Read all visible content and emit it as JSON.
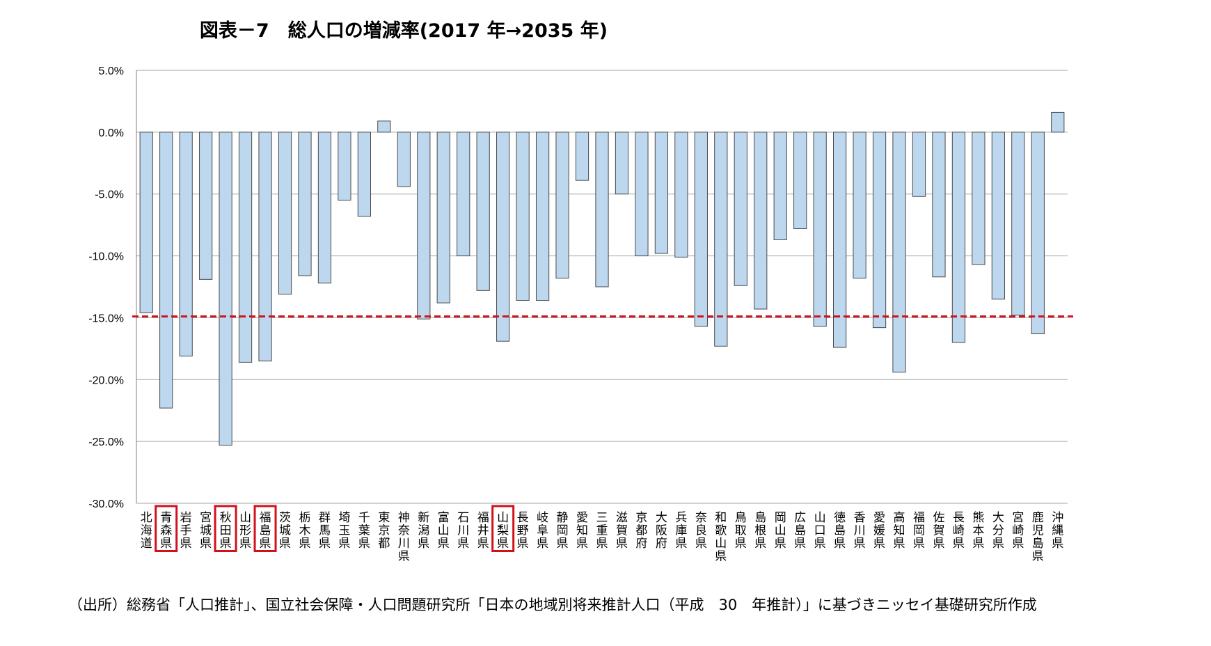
{
  "chart_data": {
    "type": "bar",
    "title": "図表－7　総人口の増減率(2017 年→2035 年)",
    "ylim": [
      -30,
      5
    ],
    "yticks": [
      "5.0%",
      "0.0%",
      "-5.0%",
      "-10.0%",
      "-15.0%",
      "-20.0%",
      "-25.0%",
      "-30.0%"
    ],
    "ytick_values": [
      5,
      0,
      -5,
      -10,
      -15,
      -20,
      -25,
      -30
    ],
    "grid": true,
    "reference_line": -14.9,
    "categories": [
      "北海道",
      "青森県",
      "岩手県",
      "宮城県",
      "秋田県",
      "山形県",
      "福島県",
      "茨城県",
      "栃木県",
      "群馬県",
      "埼玉県",
      "千葉県",
      "東京都",
      "神奈川県",
      "新潟県",
      "富山県",
      "石川県",
      "福井県",
      "山梨県",
      "長野県",
      "岐阜県",
      "静岡県",
      "愛知県",
      "三重県",
      "滋賀県",
      "京都府",
      "大阪府",
      "兵庫県",
      "奈良県",
      "和歌山県",
      "鳥取県",
      "島根県",
      "岡山県",
      "広島県",
      "山口県",
      "徳島県",
      "香川県",
      "愛媛県",
      "高知県",
      "福岡県",
      "佐賀県",
      "長崎県",
      "熊本県",
      "大分県",
      "宮崎県",
      "鹿児島県",
      "沖縄県"
    ],
    "values": [
      -14.6,
      -22.3,
      -18.1,
      -11.9,
      -25.3,
      -18.6,
      -18.5,
      -13.1,
      -11.6,
      -12.2,
      -5.5,
      -6.8,
      0.9,
      -4.4,
      -15.1,
      -13.8,
      -10.0,
      -12.8,
      -16.9,
      -13.6,
      -13.6,
      -11.8,
      -3.9,
      -12.5,
      -5.0,
      -10.0,
      -9.8,
      -10.1,
      -15.7,
      -17.3,
      -12.4,
      -14.3,
      -8.7,
      -7.8,
      -15.7,
      -17.4,
      -11.8,
      -15.8,
      -19.4,
      -5.2,
      -11.7,
      -17.0,
      -10.7,
      -13.5,
      -14.8,
      -16.3,
      1.6
    ],
    "highlighted": [
      1,
      4,
      6,
      18
    ],
    "colors": {
      "bar_fill": "#bdd7ee",
      "bar_stroke": "#4a4a4a",
      "reference_line": "#d0121b",
      "highlight_box": "#d0121b",
      "grid": "#a6a6a6"
    }
  },
  "source_note": "（出所）総務省「人口推計」、国立社会保障・人口問題研究所「日本の地域別将来推計人口（平成　30　年推計）」に基づきニッセイ基礎研究所作成"
}
